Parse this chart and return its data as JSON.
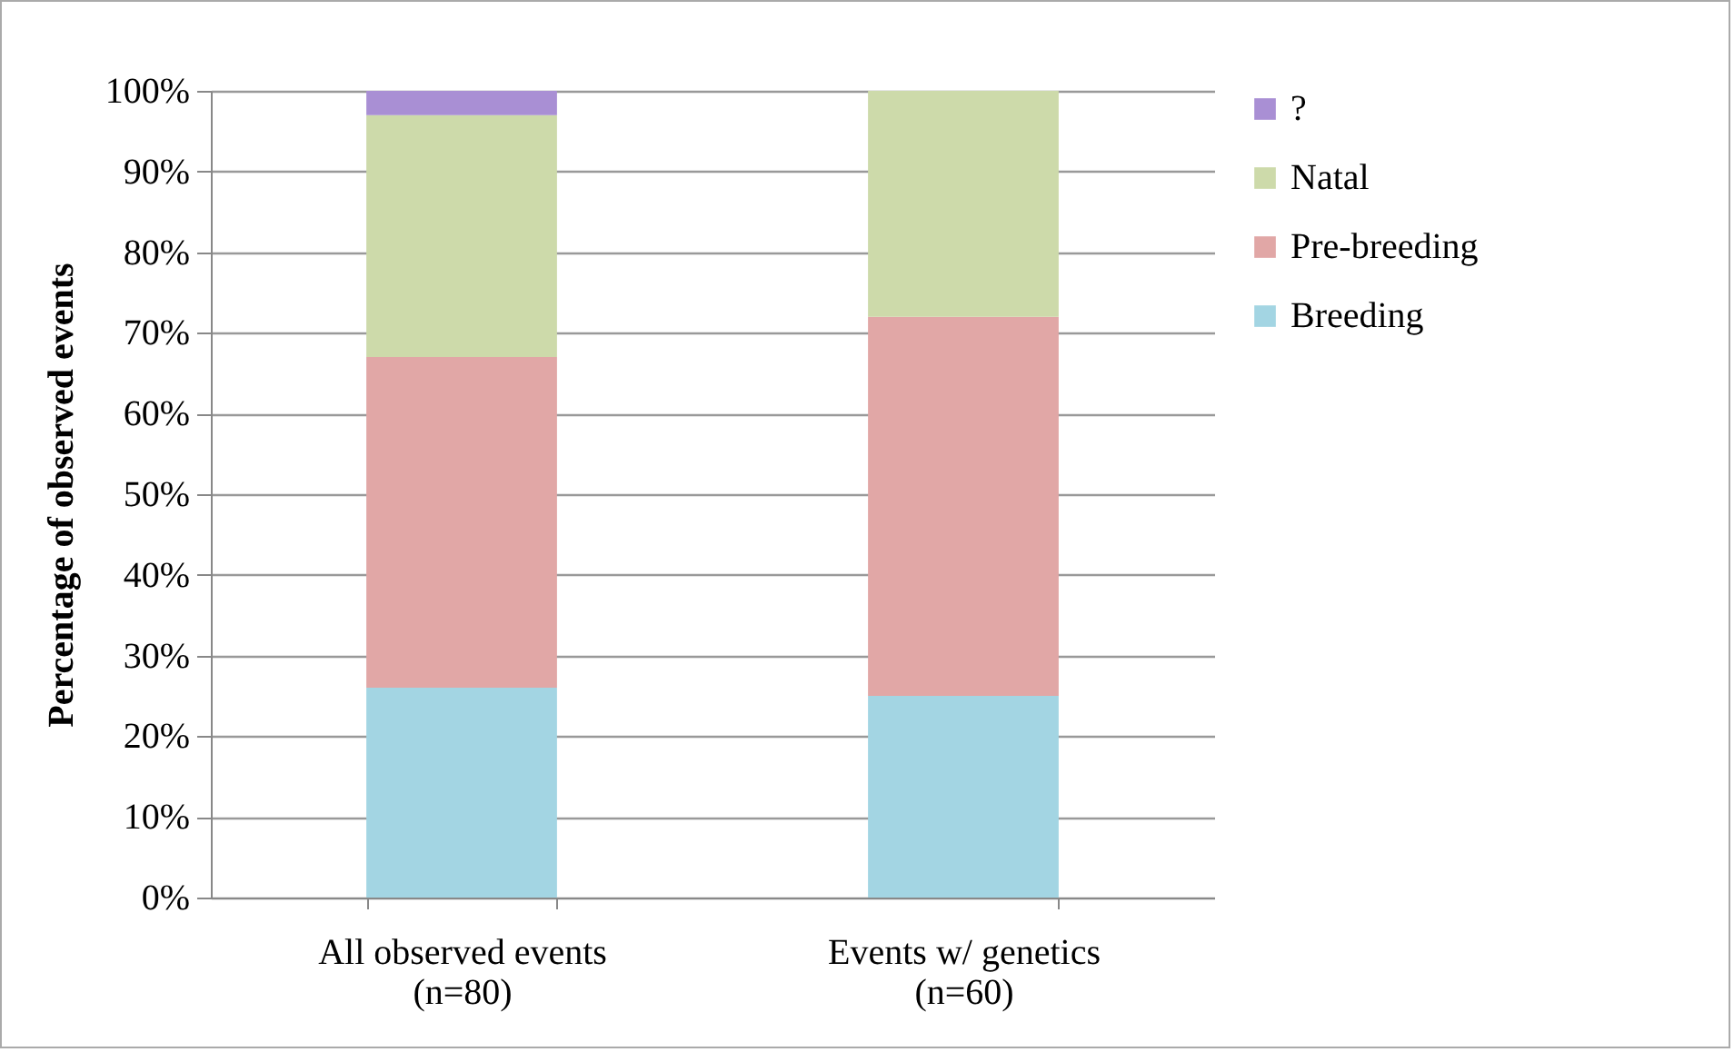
{
  "chart_data": {
    "type": "bar",
    "stacked": true,
    "ylabel": "Percentage of observed events",
    "categories": [
      "All observed events\n(n=80)",
      "Events w/ genetics\n(n=60)"
    ],
    "series": [
      {
        "name": "Breeding",
        "color": "#a3d5e3",
        "values": [
          26,
          25
        ]
      },
      {
        "name": "Pre-breeding",
        "color": "#e1a7a6",
        "values": [
          41,
          47
        ]
      },
      {
        "name": "Natal",
        "color": "#cddaaa",
        "values": [
          30,
          28
        ]
      },
      {
        "name": "?",
        "color": "#a98fd4",
        "values": [
          3,
          0
        ]
      }
    ],
    "ylim": [
      0,
      100
    ],
    "yticks": [
      {
        "value": 0,
        "label": "0%"
      },
      {
        "value": 10,
        "label": "10%"
      },
      {
        "value": 20,
        "label": "20%"
      },
      {
        "value": 30,
        "label": "30%"
      },
      {
        "value": 40,
        "label": "40%"
      },
      {
        "value": 50,
        "label": "50%"
      },
      {
        "value": 60,
        "label": "60%"
      },
      {
        "value": 70,
        "label": "70%"
      },
      {
        "value": 80,
        "label": "80%"
      },
      {
        "value": 90,
        "label": "90%"
      },
      {
        "value": 100,
        "label": "100%"
      }
    ],
    "grid": "y",
    "legend": "right"
  }
}
